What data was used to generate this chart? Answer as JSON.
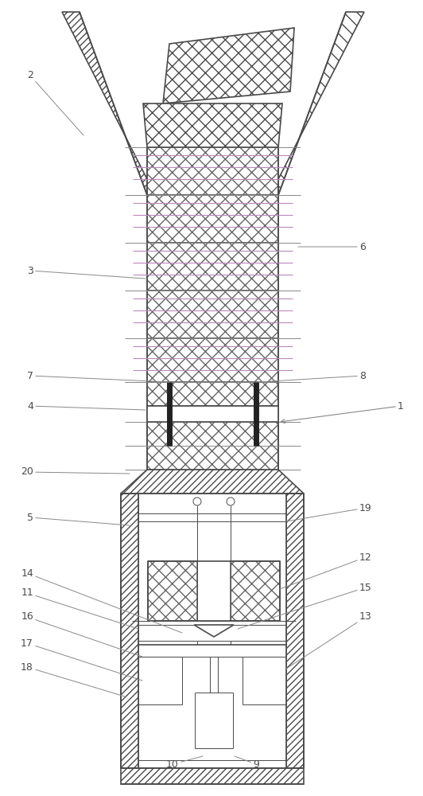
{
  "bg_color": "#ffffff",
  "lc": "#4a4a4a",
  "lc_dark": "#222222",
  "lc_purple": "#bb88bb",
  "lc_gray": "#888888",
  "lw_main": 1.2,
  "lw_thin": 0.7,
  "lw_bar": 5.0,
  "label_fs": 9,
  "fig_width": 5.32,
  "fig_height": 10.0
}
